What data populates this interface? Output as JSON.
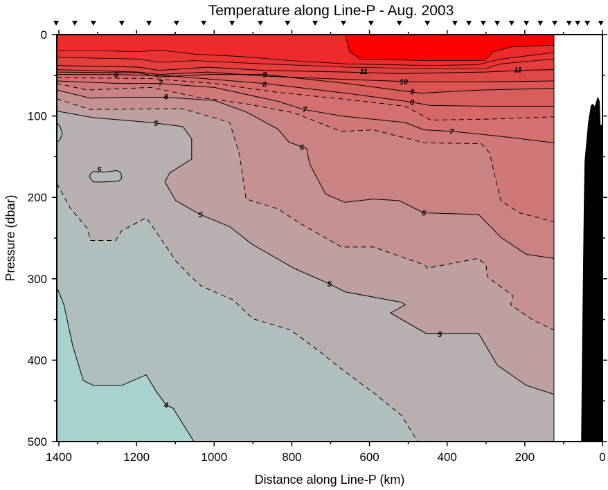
{
  "chart_data": {
    "type": "heatmap",
    "subtype": "contour-section",
    "title": "Temperature along Line-P - Aug. 2003",
    "xlabel": "Distance along Line-P (km)",
    "ylabel": "Pressure (dbar)",
    "xlim": [
      1405,
      0
    ],
    "ylim": [
      0,
      500
    ],
    "data_xlim": [
      1405,
      125
    ],
    "x_ticks": [
      1400,
      1200,
      1000,
      800,
      600,
      400,
      200,
      0
    ],
    "x_minor_step": 100,
    "y_ticks": [
      0,
      100,
      200,
      300,
      400,
      500
    ],
    "y_minor_step": 50,
    "stations_km": [
      1407,
      1359,
      1311,
      1238,
      1168,
      1097,
      1027,
      954,
      881,
      811,
      740,
      667,
      596,
      523,
      451,
      380,
      344,
      307,
      271,
      234,
      196,
      160,
      123,
      86,
      64,
      39,
      4
    ],
    "base_color": "#ee2a2a",
    "contours": [
      {
        "level": 12,
        "style": "solid",
        "fill": "#ea3434",
        "points": [
          [
            1405,
            20
          ],
          [
            1284,
            20
          ],
          [
            1195,
            21
          ],
          [
            1141,
            19
          ],
          [
            1052,
            24
          ],
          [
            927,
            27
          ],
          [
            803,
            32
          ],
          [
            660,
            36
          ],
          [
            446,
            38
          ],
          [
            320,
            37
          ],
          [
            262,
            30
          ],
          [
            125,
            22
          ]
        ]
      },
      {
        "level": 11.5,
        "style": "solid",
        "fill": "#e63e3e",
        "points": [
          [
            1405,
            28
          ],
          [
            1195,
            30
          ],
          [
            1141,
            34
          ],
          [
            1052,
            32
          ],
          [
            870,
            36
          ],
          [
            660,
            40
          ],
          [
            446,
            42
          ],
          [
            303,
            42
          ],
          [
            262,
            36
          ],
          [
            125,
            30
          ]
        ]
      },
      {
        "level": 11,
        "style": "solid",
        "fill": "#e04848",
        "points": [
          [
            1405,
            38
          ],
          [
            1195,
            40
          ],
          [
            1141,
            44
          ],
          [
            1017,
            40
          ],
          [
            870,
            44
          ],
          [
            660,
            46
          ],
          [
            524,
            48
          ],
          [
            303,
            46
          ],
          [
            214,
            44
          ],
          [
            125,
            43
          ]
        ]
      },
      {
        "level": 10,
        "style": "solid",
        "fill": "#dc5454",
        "points": [
          [
            1405,
            43
          ],
          [
            1195,
            46
          ],
          [
            1141,
            49
          ],
          [
            1017,
            46
          ],
          [
            870,
            51
          ],
          [
            660,
            55
          ],
          [
            490,
            58
          ],
          [
            303,
            58
          ],
          [
            125,
            57
          ]
        ]
      },
      {
        "level": 9,
        "style": "solid",
        "fill": "#d85e5e",
        "points": [
          [
            1405,
            46
          ],
          [
            1195,
            47
          ],
          [
            1141,
            52
          ],
          [
            1017,
            49
          ],
          [
            870,
            49
          ],
          [
            660,
            60
          ],
          [
            467,
            72
          ],
          [
            392,
            70
          ],
          [
            303,
            68
          ],
          [
            125,
            66
          ]
        ]
      },
      {
        "level": 8,
        "style": "solid",
        "fill": "#d66868",
        "points": [
          [
            1405,
            49
          ],
          [
            1252,
            49
          ],
          [
            1106,
            51
          ],
          [
            870,
            60
          ],
          [
            660,
            72
          ],
          [
            490,
            83
          ],
          [
            446,
            87
          ],
          [
            303,
            88
          ],
          [
            125,
            88
          ]
        ]
      },
      {
        "level": 7.5,
        "style": "dashed",
        "fill": "#d47070",
        "points": [
          [
            1405,
            53
          ],
          [
            1163,
            54
          ],
          [
            999,
            60
          ],
          [
            836,
            71
          ],
          [
            672,
            79
          ],
          [
            508,
            88
          ],
          [
            442,
            105
          ],
          [
            303,
            104
          ],
          [
            125,
            101
          ]
        ]
      },
      {
        "level": 7,
        "style": "solid",
        "fill": "#d07878",
        "points": [
          [
            1405,
            57
          ],
          [
            1245,
            60
          ],
          [
            1141,
            60
          ],
          [
            999,
            65
          ],
          [
            836,
            82
          ],
          [
            770,
            92
          ],
          [
            672,
            100
          ],
          [
            508,
            108
          ],
          [
            460,
            117
          ],
          [
            385,
            119
          ],
          [
            262,
            125
          ],
          [
            125,
            133
          ]
        ]
      },
      {
        "level": 6.5,
        "style": "dashed",
        "fill": "#cb8282",
        "points": [
          [
            1405,
            60
          ],
          [
            1327,
            68
          ],
          [
            1163,
            65
          ],
          [
            1040,
            77
          ],
          [
            918,
            85
          ],
          [
            795,
            96
          ],
          [
            672,
            119
          ],
          [
            590,
            117
          ],
          [
            458,
            133
          ],
          [
            312,
            134
          ],
          [
            291,
            145
          ],
          [
            262,
            204
          ],
          [
            214,
            219
          ],
          [
            125,
            230
          ]
        ]
      },
      {
        "level": 6,
        "style": "solid",
        "fill": "#c59090",
        "points": [
          [
            1405,
            68
          ],
          [
            1320,
            78
          ],
          [
            1238,
            77
          ],
          [
            1124,
            77
          ],
          [
            999,
            81
          ],
          [
            918,
            95
          ],
          [
            836,
            116
          ],
          [
            808,
            132
          ],
          [
            762,
            140
          ],
          [
            754,
            159
          ],
          [
            713,
            196
          ],
          [
            663,
            206
          ],
          [
            590,
            202
          ],
          [
            524,
            204
          ],
          [
            460,
            219
          ],
          [
            319,
            221
          ],
          [
            262,
            249
          ],
          [
            196,
            270
          ],
          [
            125,
            275
          ]
        ]
      },
      {
        "level": 5.5,
        "style": "dashed",
        "fill": "#bea0a0",
        "points": [
          [
            1405,
            79
          ],
          [
            1320,
            92
          ],
          [
            1081,
            91
          ],
          [
            960,
            108
          ],
          [
            935,
            147
          ],
          [
            918,
            202
          ],
          [
            836,
            214
          ],
          [
            779,
            232
          ],
          [
            672,
            261
          ],
          [
            590,
            261
          ],
          [
            458,
            283
          ],
          [
            451,
            287
          ],
          [
            321,
            275
          ],
          [
            300,
            283
          ],
          [
            296,
            298
          ],
          [
            230,
            321
          ],
          [
            237,
            332
          ],
          [
            178,
            351
          ],
          [
            125,
            363
          ]
        ]
      },
      {
        "level": 5,
        "style": "solid",
        "fill": "#b8b0b0",
        "points": [
          [
            1405,
            94
          ],
          [
            1311,
            102
          ],
          [
            1163,
            108
          ],
          [
            1081,
            113
          ],
          [
            1058,
            128
          ],
          [
            1058,
            153
          ],
          [
            1115,
            170
          ],
          [
            1127,
            181
          ],
          [
            1099,
            204
          ],
          [
            1036,
            221
          ],
          [
            960,
            236
          ],
          [
            901,
            258
          ],
          [
            795,
            287
          ],
          [
            704,
            306
          ],
          [
            663,
            316
          ],
          [
            517,
            329
          ],
          [
            508,
            332
          ],
          [
            546,
            342
          ],
          [
            455,
            367
          ],
          [
            319,
            367
          ],
          [
            271,
            406
          ],
          [
            196,
            431
          ],
          [
            125,
            442
          ]
        ]
      },
      {
        "level": 5,
        "style": "solid",
        "closed": true,
        "fill": "#b3b8b8",
        "points": [
          [
            1320,
            172
          ],
          [
            1311,
            168
          ],
          [
            1284,
            169
          ],
          [
            1250,
            167
          ],
          [
            1240,
            170
          ],
          [
            1238,
            176
          ],
          [
            1245,
            180
          ],
          [
            1284,
            181
          ],
          [
            1311,
            181
          ],
          [
            1320,
            176
          ]
        ]
      },
      {
        "level": 4.5,
        "style": "solid",
        "closed": true,
        "fill": "#b0c0c0",
        "points": [
          [
            1405,
            108
          ],
          [
            1396,
            114
          ],
          [
            1391,
            122
          ],
          [
            1398,
            130
          ],
          [
            1405,
            132
          ]
        ]
      },
      {
        "level": 4.5,
        "style": "dashed",
        "fill": "#b1bebe",
        "bottom": true,
        "points": [
          [
            1405,
            183
          ],
          [
            1371,
            213
          ],
          [
            1327,
            238
          ],
          [
            1318,
            253
          ],
          [
            1254,
            253
          ],
          [
            1238,
            241
          ],
          [
            1175,
            225
          ],
          [
            1147,
            244
          ],
          [
            1099,
            278
          ],
          [
            1065,
            295
          ],
          [
            1033,
            309
          ],
          [
            951,
            326
          ],
          [
            901,
            349
          ],
          [
            803,
            363
          ],
          [
            729,
            389
          ],
          [
            672,
            411
          ],
          [
            590,
            440
          ],
          [
            517,
            468
          ],
          [
            476,
            500
          ]
        ]
      },
      {
        "level": 4,
        "style": "solid",
        "fill": "#a9d1cf",
        "bottom": true,
        "points": [
          [
            1403,
            313
          ],
          [
            1387,
            332
          ],
          [
            1364,
            383
          ],
          [
            1337,
            425
          ],
          [
            1311,
            431
          ],
          [
            1238,
            431
          ],
          [
            1175,
            418
          ],
          [
            1150,
            438
          ],
          [
            1124,
            455
          ],
          [
            1106,
            459
          ],
          [
            1052,
            500
          ]
        ]
      },
      {
        "level": 13,
        "style": "solid",
        "closed": true,
        "fill": "#ff0000",
        "points": [
          [
            663,
            0
          ],
          [
            651,
            21
          ],
          [
            624,
            30
          ],
          [
            446,
            32
          ],
          [
            303,
            32
          ],
          [
            282,
            21
          ],
          [
            232,
            15
          ],
          [
            125,
            13
          ],
          [
            125,
            0
          ]
        ]
      }
    ],
    "contour_labels": [
      {
        "text": "11",
        "at": [
          615,
          45
        ]
      },
      {
        "text": "11",
        "at": [
          218,
          43
        ]
      },
      {
        "text": "10",
        "at": [
          512,
          58
        ]
      },
      {
        "text": "9",
        "at": [
          870,
          49
        ]
      },
      {
        "text": "9",
        "at": [
          490,
          70
        ]
      },
      {
        "text": "8",
        "at": [
          1252,
          49
        ]
      },
      {
        "text": "8",
        "at": [
          870,
          61
        ]
      },
      {
        "text": "8",
        "at": [
          490,
          83
        ]
      },
      {
        "text": "7",
        "at": [
          1138,
          59
        ]
      },
      {
        "text": "7",
        "at": [
          767,
          92
        ]
      },
      {
        "text": "7",
        "at": [
          389,
          119
        ]
      },
      {
        "text": "6",
        "at": [
          1124,
          76
        ]
      },
      {
        "text": "6",
        "at": [
          774,
          138
        ]
      },
      {
        "text": "6",
        "at": [
          460,
          219
        ]
      },
      {
        "text": "5",
        "at": [
          1150,
          109
        ]
      },
      {
        "text": "5",
        "at": [
          1296,
          166
        ]
      },
      {
        "text": "5",
        "at": [
          1035,
          221
        ]
      },
      {
        "text": "5",
        "at": [
          703,
          306
        ]
      },
      {
        "text": "5",
        "at": [
          419,
          368
        ]
      },
      {
        "text": "4",
        "at": [
          1124,
          455
        ]
      }
    ],
    "bathymetry": {
      "fill": "#000000",
      "points": [
        [
          55,
          500
        ],
        [
          52,
          371
        ],
        [
          48,
          208
        ],
        [
          46,
          155
        ],
        [
          37,
          108
        ],
        [
          30,
          87
        ],
        [
          25,
          85
        ],
        [
          20,
          88
        ],
        [
          12,
          76
        ],
        [
          7,
          82
        ],
        [
          5,
          111
        ],
        [
          0,
          111
        ],
        [
          0,
          500
        ]
      ]
    }
  }
}
